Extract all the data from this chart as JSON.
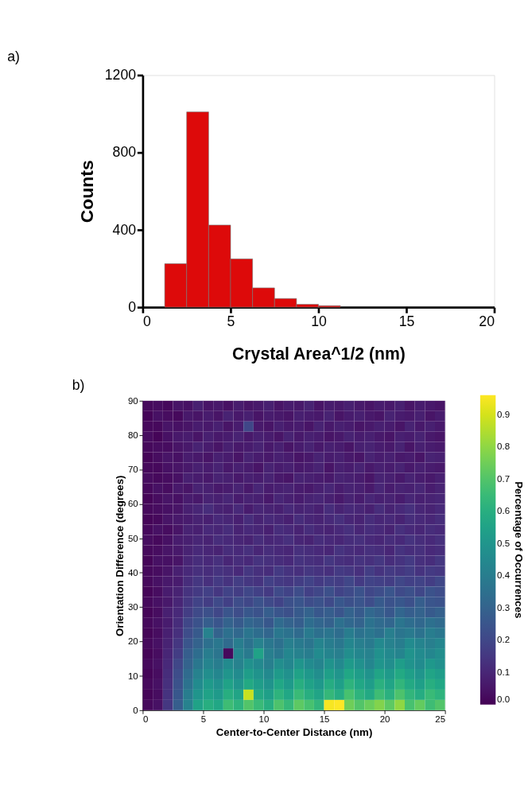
{
  "chart_data": [
    {
      "type": "histogram",
      "title": "a)",
      "xlabel": "Crystal Area^1/2 (nm)",
      "ylabel": "Counts",
      "color": "#dd0a0a",
      "bins": [
        1.25,
        2.5,
        3.75,
        5,
        6.25,
        7.5,
        8.75,
        10,
        11.25
      ],
      "values": [
        225,
        1010,
        425,
        250,
        100,
        45,
        15,
        8
      ],
      "xlim": [
        0,
        20
      ],
      "xticks": [
        0,
        5,
        10,
        15,
        20
      ],
      "ylim": [
        0,
        1200
      ],
      "yticks": [
        0,
        400,
        800,
        1200
      ],
      "grid": false
    },
    {
      "type": "heatmap",
      "title": "b)",
      "xlabel": "Center-to-Center Distance (nm)",
      "ylabel": "Orientation Difference (degrees)",
      "clabel": "Percentage of Occurrences",
      "xlim": [
        0,
        25
      ],
      "xticks": [
        0,
        5,
        10,
        15,
        20,
        25
      ],
      "ylim": [
        0,
        90
      ],
      "yticks": [
        0,
        10,
        20,
        30,
        40,
        50,
        60,
        70,
        80,
        90
      ],
      "clim": [
        0,
        0.96
      ],
      "cticks": [
        {
          "value": 0,
          "label": "0.0"
        },
        {
          "value": 0.1,
          "label": "0.1"
        },
        {
          "value": 0.2,
          "label": "0.2"
        },
        {
          "value": 0.3,
          "label": "0.3"
        },
        {
          "value": 0.4,
          "label": "0.4"
        },
        {
          "value": 0.5,
          "label": "0.5"
        },
        {
          "value": 0.6,
          "label": "0.6"
        },
        {
          "value": 0.7,
          "label": "0.7"
        },
        {
          "value": 0.8,
          "label": "0.8"
        },
        {
          "value": 0.9,
          "label": "0.9"
        }
      ],
      "cells": [
        [
          0.02,
          0.03,
          0.02,
          0.05,
          0.04,
          0.08,
          0.05,
          0.06,
          0.04,
          0.07,
          0.05,
          0.06,
          0.08,
          0.05,
          0.07,
          0.06,
          0.09,
          0.05,
          0.07,
          0.06,
          0.08,
          0.06,
          0.05,
          0.07,
          0.06,
          0.08,
          0.05,
          0.07,
          0.06,
          0.05
        ],
        [
          0.01,
          0.04,
          0.03,
          0.02,
          0.06,
          0.05,
          0.07,
          0.05,
          0.09,
          0.06,
          0.08,
          0.05,
          0.07,
          0.06,
          0.05,
          0.08,
          0.07,
          0.06,
          0.09,
          0.05,
          0.07,
          0.08,
          0.06,
          0.05,
          0.09,
          0.07,
          0.06,
          0.08,
          0.05,
          0.07
        ],
        [
          0.02,
          0.02,
          0.05,
          0.04,
          0.05,
          0.07,
          0.06,
          0.08,
          0.05,
          0.07,
          0.2,
          0.06,
          0.05,
          0.08,
          0.06,
          0.07,
          0.05,
          0.09,
          0.06,
          0.08,
          0.07,
          0.05,
          0.06,
          0.08,
          0.07,
          0.05,
          0.09,
          0.06,
          0.08,
          0.06
        ],
        [
          0.03,
          0.01,
          0.04,
          0.06,
          0.07,
          0.05,
          0.08,
          0.06,
          0.07,
          0.09,
          0.06,
          0.08,
          0.07,
          0.05,
          0.09,
          0.06,
          0.08,
          0.07,
          0.05,
          0.06,
          0.09,
          0.07,
          0.08,
          0.06,
          0.05,
          0.08,
          0.07,
          0.09,
          0.06,
          0.05
        ],
        [
          0.02,
          0.03,
          0.03,
          0.05,
          0.06,
          0.09,
          0.07,
          0.05,
          0.08,
          0.06,
          0.07,
          0.09,
          0.06,
          0.08,
          0.05,
          0.07,
          0.09,
          0.06,
          0.08,
          0.07,
          0.05,
          0.08,
          0.09,
          0.07,
          0.06,
          0.09,
          0.05,
          0.08,
          0.07,
          0.06
        ],
        [
          0.01,
          0.03,
          0.05,
          0.04,
          0.07,
          0.06,
          0.05,
          0.08,
          0.07,
          0.05,
          0.09,
          0.07,
          0.06,
          0.08,
          0.07,
          0.05,
          0.06,
          0.09,
          0.07,
          0.08,
          0.06,
          0.05,
          0.09,
          0.07,
          0.08,
          0.06,
          0.07,
          0.05,
          0.09,
          0.08
        ],
        [
          0.02,
          0.02,
          0.04,
          0.05,
          0.06,
          0.08,
          0.07,
          0.09,
          0.06,
          0.08,
          0.07,
          0.05,
          0.09,
          0.07,
          0.08,
          0.06,
          0.07,
          0.09,
          0.05,
          0.08,
          0.07,
          0.09,
          0.06,
          0.08,
          0.07,
          0.09,
          0.06,
          0.08,
          0.07,
          0.06
        ],
        [
          0.03,
          0.02,
          0.03,
          0.04,
          0.08,
          0.07,
          0.06,
          0.09,
          0.08,
          0.06,
          0.08,
          0.07,
          0.09,
          0.06,
          0.05,
          0.09,
          0.08,
          0.07,
          0.06,
          0.09,
          0.08,
          0.07,
          0.05,
          0.09,
          0.08,
          0.06,
          0.09,
          0.07,
          0.06,
          0.08
        ],
        [
          0.02,
          0.04,
          0.03,
          0.06,
          0.05,
          0.09,
          0.08,
          0.06,
          0.07,
          0.09,
          0.06,
          0.1,
          0.07,
          0.08,
          0.09,
          0.07,
          0.06,
          0.08,
          0.1,
          0.07,
          0.09,
          0.08,
          0.06,
          0.1,
          0.07,
          0.09,
          0.08,
          0.1,
          0.07,
          0.09
        ],
        [
          0.01,
          0.03,
          0.05,
          0.04,
          0.07,
          0.06,
          0.09,
          0.08,
          0.1,
          0.07,
          0.09,
          0.08,
          0.06,
          0.1,
          0.08,
          0.07,
          0.09,
          0.1,
          0.08,
          0.06,
          0.09,
          0.07,
          0.1,
          0.08,
          0.09,
          0.07,
          0.1,
          0.08,
          0.09,
          0.1
        ],
        [
          0.02,
          0.03,
          0.04,
          0.05,
          0.08,
          0.1,
          0.12,
          0.09,
          0.08,
          0.11,
          0.07,
          0.1,
          0.09,
          0.08,
          0.11,
          0.09,
          0.1,
          0.08,
          0.12,
          0.09,
          0.11,
          0.1,
          0.08,
          0.12,
          0.09,
          0.11,
          0.13,
          0.1,
          0.09,
          0.11
        ],
        [
          0.01,
          0.02,
          0.05,
          0.06,
          0.07,
          0.09,
          0.08,
          0.11,
          0.1,
          0.08,
          0.12,
          0.09,
          0.11,
          0.1,
          0.08,
          0.12,
          0.1,
          0.09,
          0.11,
          0.13,
          0.1,
          0.09,
          0.12,
          0.1,
          0.11,
          0.09,
          0.12,
          0.11,
          0.1,
          0.12
        ],
        [
          0.02,
          0.04,
          0.03,
          0.05,
          0.09,
          0.08,
          0.11,
          0.1,
          0.12,
          0.09,
          0.11,
          0.1,
          0.08,
          0.12,
          0.11,
          0.09,
          0.12,
          0.1,
          0.09,
          0.11,
          0.13,
          0.1,
          0.12,
          0.11,
          0.09,
          0.13,
          0.11,
          0.1,
          0.12,
          0.11
        ],
        [
          0.03,
          0.02,
          0.04,
          0.07,
          0.08,
          0.1,
          0.09,
          0.12,
          0.11,
          0.1,
          0.09,
          0.12,
          0.1,
          0.11,
          0.13,
          0.1,
          0.09,
          0.12,
          0.11,
          0.1,
          0.12,
          0.13,
          0.11,
          0.1,
          0.12,
          0.11,
          0.14,
          0.12,
          0.11,
          0.13
        ],
        [
          0.02,
          0.03,
          0.05,
          0.06,
          0.09,
          0.11,
          0.1,
          0.09,
          0.12,
          0.11,
          0.13,
          0.1,
          0.12,
          0.11,
          0.1,
          0.13,
          0.12,
          0.11,
          0.1,
          0.14,
          0.12,
          0.11,
          0.13,
          0.12,
          0.1,
          0.14,
          0.12,
          0.13,
          0.11,
          0.12
        ],
        [
          0.01,
          0.04,
          0.04,
          0.05,
          0.1,
          0.12,
          0.11,
          0.13,
          0.1,
          0.12,
          0.11,
          0.14,
          0.13,
          0.12,
          0.11,
          0.14,
          0.13,
          0.12,
          0.15,
          0.13,
          0.12,
          0.14,
          0.13,
          0.15,
          0.12,
          0.14,
          0.16,
          0.13,
          0.12,
          0.15
        ],
        [
          0.02,
          0.03,
          0.05,
          0.08,
          0.11,
          0.13,
          0.12,
          0.14,
          0.13,
          0.11,
          0.15,
          0.13,
          0.12,
          0.16,
          0.14,
          0.13,
          0.15,
          0.14,
          0.13,
          0.16,
          0.15,
          0.13,
          0.17,
          0.14,
          0.16,
          0.15,
          0.17,
          0.14,
          0.16,
          0.15
        ],
        [
          0.02,
          0.04,
          0.06,
          0.07,
          0.12,
          0.15,
          0.13,
          0.16,
          0.14,
          0.17,
          0.15,
          0.14,
          0.18,
          0.16,
          0.15,
          0.17,
          0.19,
          0.16,
          0.18,
          0.17,
          0.2,
          0.16,
          0.19,
          0.18,
          0.17,
          0.2,
          0.18,
          0.19,
          0.17,
          0.2
        ],
        [
          0.01,
          0.03,
          0.07,
          0.09,
          0.14,
          0.16,
          0.18,
          0.15,
          0.19,
          0.17,
          0.2,
          0.18,
          0.16,
          0.21,
          0.19,
          0.22,
          0.18,
          0.2,
          0.23,
          0.19,
          0.21,
          0.24,
          0.2,
          0.22,
          0.25,
          0.21,
          0.23,
          0.2,
          0.24,
          0.22
        ],
        [
          0.02,
          0.04,
          0.06,
          0.1,
          0.15,
          0.19,
          0.17,
          0.21,
          0.18,
          0.22,
          0.2,
          0.24,
          0.21,
          0.19,
          0.23,
          0.25,
          0.22,
          0.24,
          0.21,
          0.26,
          0.23,
          0.25,
          0.22,
          0.27,
          0.24,
          0.26,
          0.23,
          0.28,
          0.25,
          0.24
        ],
        [
          0.01,
          0.03,
          0.08,
          0.11,
          0.17,
          0.21,
          0.23,
          0.2,
          0.25,
          0.22,
          0.26,
          0.24,
          0.28,
          0.25,
          0.23,
          0.27,
          0.3,
          0.26,
          0.28,
          0.25,
          0.3,
          0.27,
          0.32,
          0.29,
          0.26,
          0.31,
          0.28,
          0.3,
          0.27,
          0.29
        ],
        [
          0.02,
          0.04,
          0.07,
          0.12,
          0.2,
          0.24,
          0.28,
          0.25,
          0.3,
          0.27,
          0.31,
          0.29,
          0.26,
          0.33,
          0.3,
          0.28,
          0.34,
          0.31,
          0.29,
          0.35,
          0.32,
          0.3,
          0.36,
          0.33,
          0.31,
          0.37,
          0.34,
          0.32,
          0.35,
          0.33
        ],
        [
          0.01,
          0.03,
          0.08,
          0.13,
          0.22,
          0.27,
          0.42,
          0.3,
          0.35,
          0.32,
          0.37,
          0.34,
          0.31,
          0.38,
          0.36,
          0.33,
          0.39,
          0.35,
          0.37,
          0.34,
          0.4,
          0.36,
          0.38,
          0.35,
          0.41,
          0.37,
          0.39,
          0.36,
          0.4,
          0.38
        ],
        [
          0.02,
          0.04,
          0.09,
          0.15,
          0.25,
          0.3,
          0.35,
          0.38,
          0.33,
          0.4,
          0.36,
          0.42,
          0.38,
          0.35,
          0.41,
          0.39,
          0.37,
          0.43,
          0.4,
          0.38,
          0.44,
          0.41,
          0.39,
          0.45,
          0.42,
          0.4,
          0.46,
          0.43,
          0.41,
          0.44
        ],
        [
          0.01,
          0.03,
          0.1,
          0.17,
          0.28,
          0.34,
          0.4,
          0.37,
          0.02,
          0.43,
          0.39,
          0.55,
          0.41,
          0.38,
          0.44,
          0.42,
          0.4,
          0.46,
          0.43,
          0.41,
          0.47,
          0.44,
          0.42,
          0.48,
          0.45,
          0.43,
          0.49,
          0.46,
          0.44,
          0.47
        ],
        [
          0.02,
          0.04,
          0.11,
          0.2,
          0.3,
          0.38,
          0.43,
          0.4,
          0.46,
          0.42,
          0.48,
          0.45,
          0.41,
          0.47,
          0.44,
          0.5,
          0.46,
          0.43,
          0.49,
          0.45,
          0.52,
          0.48,
          0.44,
          0.5,
          0.47,
          0.53,
          0.49,
          0.46,
          0.51,
          0.48
        ],
        [
          0.01,
          0.03,
          0.12,
          0.22,
          0.33,
          0.42,
          0.47,
          0.44,
          0.5,
          0.46,
          0.53,
          0.49,
          0.45,
          0.52,
          0.48,
          0.55,
          0.51,
          0.47,
          0.54,
          0.5,
          0.57,
          0.53,
          0.49,
          0.56,
          0.52,
          0.58,
          0.54,
          0.5,
          0.56,
          0.53
        ],
        [
          0.02,
          0.04,
          0.13,
          0.24,
          0.36,
          0.46,
          0.52,
          0.48,
          0.55,
          0.5,
          0.58,
          0.53,
          0.49,
          0.57,
          0.52,
          0.6,
          0.55,
          0.51,
          0.59,
          0.54,
          0.62,
          0.57,
          0.53,
          0.61,
          0.56,
          0.63,
          0.58,
          0.54,
          0.6,
          0.57
        ],
        [
          0.01,
          0.03,
          0.14,
          0.26,
          0.4,
          0.5,
          0.55,
          0.52,
          0.6,
          0.56,
          0.88,
          0.58,
          0.54,
          0.62,
          0.57,
          0.65,
          0.6,
          0.56,
          0.64,
          0.59,
          0.68,
          0.62,
          0.58,
          0.66,
          0.61,
          0.69,
          0.63,
          0.59,
          0.65,
          0.62
        ],
        [
          0.02,
          0.04,
          0.15,
          0.28,
          0.42,
          0.55,
          0.6,
          0.57,
          0.66,
          0.62,
          0.7,
          0.65,
          0.6,
          0.69,
          0.64,
          0.72,
          0.68,
          0.63,
          0.95,
          0.96,
          0.75,
          0.7,
          0.74,
          0.78,
          0.72,
          0.8,
          0.68,
          0.73,
          0.66,
          0.7
        ]
      ]
    }
  ]
}
